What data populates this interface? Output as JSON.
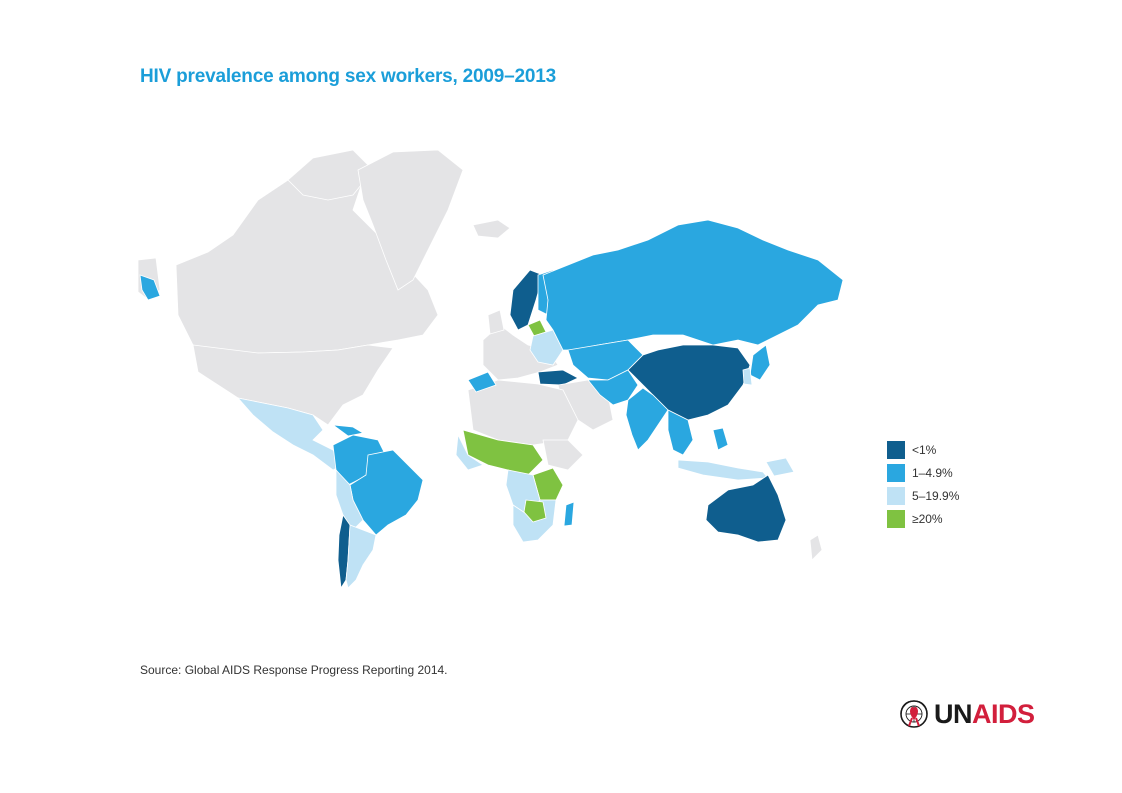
{
  "title": "HIV prevalence among sex workers, 2009–2013",
  "source": "Source: Global AIDS Response Progress Reporting 2014.",
  "logo": {
    "part_un": "UN",
    "part_aids": "AIDS"
  },
  "legend": [
    {
      "label": "<1%",
      "color": "#0f5e8e"
    },
    {
      "label": "1–4.9%",
      "color": "#2aa7e0"
    },
    {
      "label": "5–19.9%",
      "color": "#bfe2f5"
    },
    {
      "label": "≥20%",
      "color": "#7fc241"
    }
  ],
  "colors": {
    "no_data": "#e4e4e6",
    "title": "#1b9ed9",
    "logo_red": "#d21f3c"
  },
  "regions": [
    {
      "name": "canada",
      "category": "no_data"
    },
    {
      "name": "united-states",
      "category": "no_data"
    },
    {
      "name": "greenland",
      "category": "no_data"
    },
    {
      "name": "mexico-central-america",
      "category": "5–19.9%"
    },
    {
      "name": "brazil",
      "category": "1–4.9%"
    },
    {
      "name": "chile",
      "category": "<1%"
    },
    {
      "name": "argentina",
      "category": "5–19.9%"
    },
    {
      "name": "russia",
      "category": "1–4.9%"
    },
    {
      "name": "norway-sweden",
      "category": "<1%"
    },
    {
      "name": "china-mongolia",
      "category": "<1%"
    },
    {
      "name": "india",
      "category": "1–4.9%"
    },
    {
      "name": "australia",
      "category": "<1%"
    },
    {
      "name": "west-central-africa",
      "category": "≥20%"
    },
    {
      "name": "southern-africa",
      "category": "5–19.9%"
    },
    {
      "name": "east-africa",
      "category": "≥20%"
    },
    {
      "name": "indonesia",
      "category": "5–19.9%"
    },
    {
      "name": "japan",
      "category": "1–4.9%"
    }
  ]
}
